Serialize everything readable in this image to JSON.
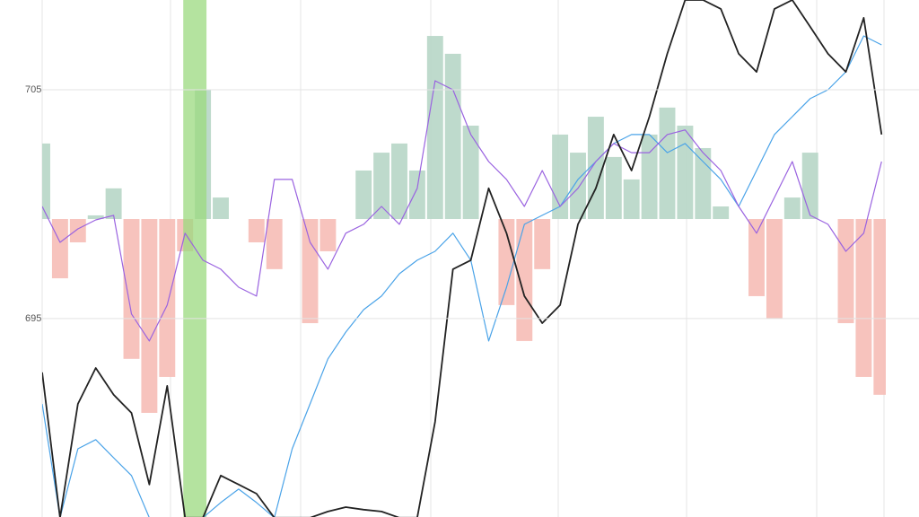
{
  "chart_data": {
    "type": "line",
    "categories": [
      null,
      null,
      null,
      null,
      null,
      null,
      null,
      null,
      null,
      null,
      null,
      null,
      null,
      null,
      null,
      null,
      null,
      null,
      null,
      null,
      null,
      null,
      null,
      null,
      null,
      null,
      null,
      null,
      null,
      null,
      null,
      null,
      null,
      null,
      null,
      null,
      null,
      null,
      null,
      null,
      null,
      null,
      null,
      null,
      null,
      null,
      null,
      null
    ],
    "ylim": [
      686.33,
      708.92
    ],
    "yticks": [
      695,
      705
    ],
    "grid": true,
    "highlight": [
      7.9,
      9.2
    ],
    "highlight_color": "#9bd97f",
    "bar_base": 699.35,
    "up_color": "#b7d6c6",
    "down_color": "#f6bcb6",
    "bars": [
      702.65,
      696.76,
      698.33,
      699.51,
      700.69,
      693.24,
      690.88,
      692.45,
      697.94,
      705,
      700.29,
      699.35,
      698.33,
      697.16,
      699.35,
      694.8,
      697.94,
      699.35,
      701.47,
      702.25,
      702.65,
      701.47,
      707.35,
      706.57,
      703.43,
      699.35,
      695.59,
      694.02,
      697.16,
      703.04,
      702.25,
      703.82,
      702.06,
      701.08,
      703.04,
      704.22,
      703.43,
      702.45,
      699.9,
      699.35,
      695.98,
      695,
      700.29,
      702.25,
      699.35,
      694.8,
      692.45,
      691.67
    ],
    "series": [
      {
        "name": "black",
        "color": "#222222",
        "values": [
          692.65,
          686.3,
          691.27,
          692.84,
          691.67,
          690.88,
          687.75,
          692.06,
          686.3,
          686.3,
          688.14,
          687.75,
          687.35,
          686.3,
          686.3,
          686.3,
          686.57,
          686.76,
          686.65,
          686.57,
          686.3,
          686.3,
          690.49,
          697.16,
          697.55,
          700.69,
          698.73,
          695.98,
          694.8,
          695.59,
          699.12,
          700.69,
          703.04,
          701.47,
          703.82,
          706.57,
          708.92,
          708.92,
          708.53,
          706.57,
          705.78,
          708.53,
          708.92,
          707.75,
          706.57,
          705.78,
          708.14,
          703.04
        ]
      },
      {
        "name": "blue",
        "color": "#4aa3e8",
        "values": [
          691.27,
          686.3,
          689.31,
          689.71,
          688.92,
          688.14,
          686.3,
          686.3,
          686.3,
          686.3,
          686.96,
          687.55,
          686.96,
          686.3,
          689.31,
          691.27,
          693.24,
          694.41,
          695.39,
          695.98,
          696.96,
          697.55,
          697.94,
          698.73,
          697.55,
          694.02,
          696.37,
          699.12,
          699.51,
          699.9,
          701.08,
          701.86,
          702.65,
          703.04,
          703.04,
          702.25,
          702.65,
          701.86,
          701.08,
          699.9,
          701.47,
          703.04,
          703.82,
          704.61,
          705,
          705.78,
          707.35,
          706.96
        ]
      },
      {
        "name": "purple",
        "color": "#9a63e0",
        "values": [
          699.9,
          698.33,
          698.92,
          699.31,
          699.51,
          695.2,
          694.02,
          695.59,
          698.73,
          697.55,
          697.16,
          696.37,
          695.98,
          701.08,
          701.08,
          698.33,
          697.16,
          698.73,
          699.12,
          699.9,
          699.12,
          700.69,
          705.39,
          705,
          703.04,
          701.86,
          701.08,
          699.9,
          701.47,
          699.9,
          700.69,
          701.86,
          702.65,
          702.25,
          702.25,
          703.04,
          703.24,
          702.25,
          701.47,
          699.9,
          698.73,
          700.29,
          701.86,
          699.51,
          699.12,
          697.94,
          698.73,
          701.86
        ]
      }
    ]
  }
}
